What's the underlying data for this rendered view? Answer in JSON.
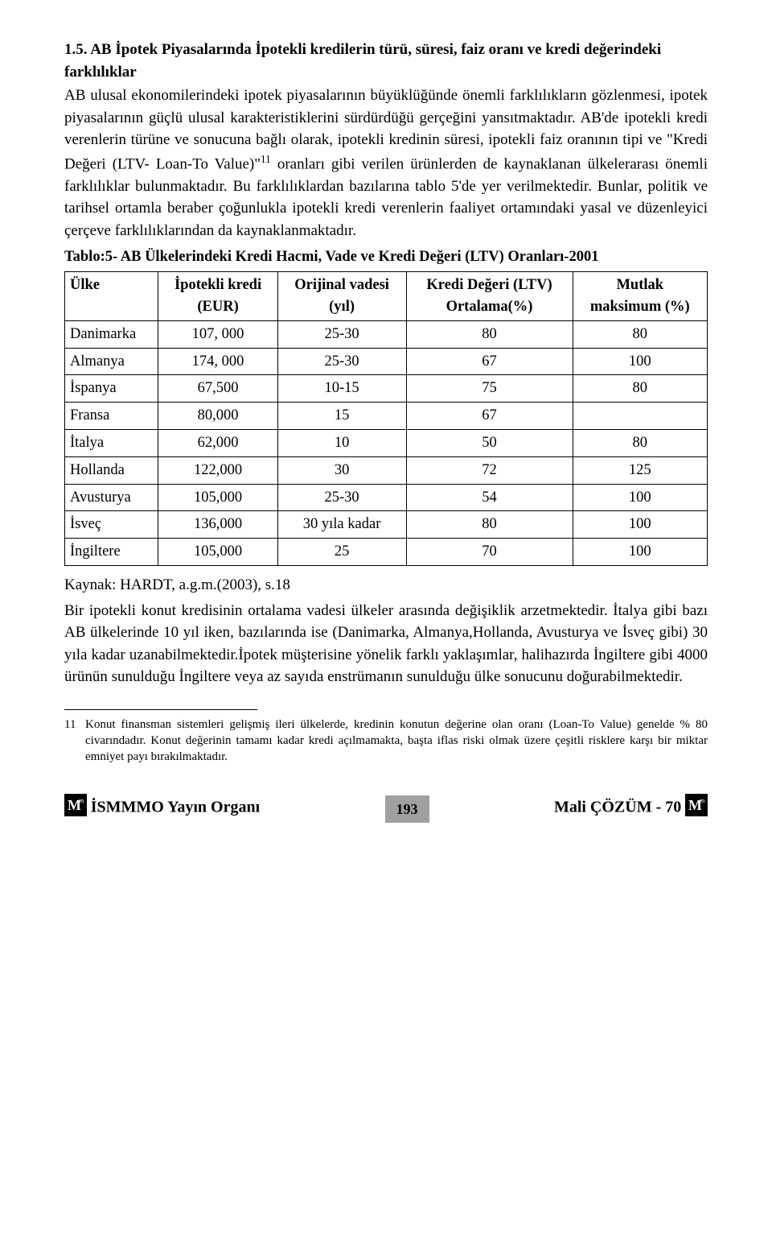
{
  "section": {
    "heading": "1.5. AB İpotek Piyasalarında İpotekli kredilerin türü, süresi, faiz oranı ve kredi değerindeki farklılıklar",
    "para1": "AB ulusal ekonomilerindeki ipotek piyasalarının büyüklüğünde önemli farklılıkların gözlenmesi, ipotek piyasalarının güçlü ulusal karakteristiklerini sürdürdüğü gerçeğini yansıtmaktadır. AB'de ipotekli kredi verenlerin türüne ve sonucuna bağlı olarak, ipotekli kredinin süresi, ipotekli faiz oranının tipi ve \"Kredi Değeri (LTV- Loan-To Value)\"",
    "footnote_ref": "11",
    "para1_cont": " oranları gibi verilen ürünlerden de kaynaklanan ülkelerarası önemli farklılıklar bulunmaktadır. Bu farklılıklardan bazılarına tablo 5'de yer verilmektedir. Bunlar, politik ve tarihsel ortamla beraber çoğunlukla ipotekli kredi verenlerin faaliyet ortamındaki yasal ve düzenleyici çerçeve farklılıklarından da kaynaklanmaktadır."
  },
  "table": {
    "title": "Tablo:5- AB Ülkelerindeki Kredi Hacmi, Vade ve Kredi Değeri (LTV) Oranları-2001",
    "columns": [
      {
        "line1": "Ülke",
        "line2": ""
      },
      {
        "line1": "İpotekli kredi",
        "line2": "(EUR)"
      },
      {
        "line1": "Orijinal vadesi",
        "line2": "(yıl)"
      },
      {
        "line1": "Kredi Değeri (LTV)",
        "line2": "Ortalama(%)"
      },
      {
        "line1": "Mutlak",
        "line2": "maksimum (%)"
      }
    ],
    "rows": [
      [
        "Danimarka",
        "107, 000",
        "25-30",
        "80",
        "80"
      ],
      [
        "Almanya",
        "174, 000",
        "25-30",
        "67",
        "100"
      ],
      [
        "İspanya",
        "67,500",
        "10-15",
        "75",
        "80"
      ],
      [
        "Fransa",
        "80,000",
        "15",
        "67",
        ""
      ],
      [
        "İtalya",
        "62,000",
        "10",
        "50",
        "80"
      ],
      [
        "Hollanda",
        "122,000",
        "30",
        "72",
        "125"
      ],
      [
        "Avusturya",
        "105,000",
        "25-30",
        "54",
        "100"
      ],
      [
        "İsveç",
        "136,000",
        "30 yıla kadar",
        "80",
        "100"
      ],
      [
        "İngiltere",
        "105,000",
        "25",
        "70",
        "100"
      ]
    ],
    "source": "Kaynak: HARDT, a.g.m.(2003), s.18"
  },
  "para2": "Bir ipotekli konut kredisinin ortalama vadesi ülkeler arasında değişiklik arzetmektedir. İtalya gibi bazı AB ülkelerinde 10 yıl iken, bazılarında ise (Danimarka, Almanya,Hollanda, Avusturya ve İsveç gibi) 30 yıla kadar uzanabilmektedir.İpotek müşterisine yönelik farklı yaklaşımlar, halihazırda İngiltere gibi 4000 ürünün sunulduğu İngiltere veya az sayıda enstrümanın sunulduğu ülke sonucunu doğurabilmektedir.",
  "footnote": {
    "num": "11",
    "text": "Konut finansman sistemleri gelişmiş ileri ülkelerde, kredinin konutun değerine olan oranı (Loan-To Value) genelde % 80 civarındadır. Konut değerinin tamamı kadar kredi açılmamakta, başta iflas riski olmak üzere çeşitli risklere karşı bir miktar emniyet payı bırakılmaktadır."
  },
  "footer": {
    "left": "İSMMMO Yayın Organı",
    "page": "193",
    "right": "Mali ÇÖZÜM - 70"
  },
  "style": {
    "logo_bg": "#000000",
    "logo_size": 28
  }
}
